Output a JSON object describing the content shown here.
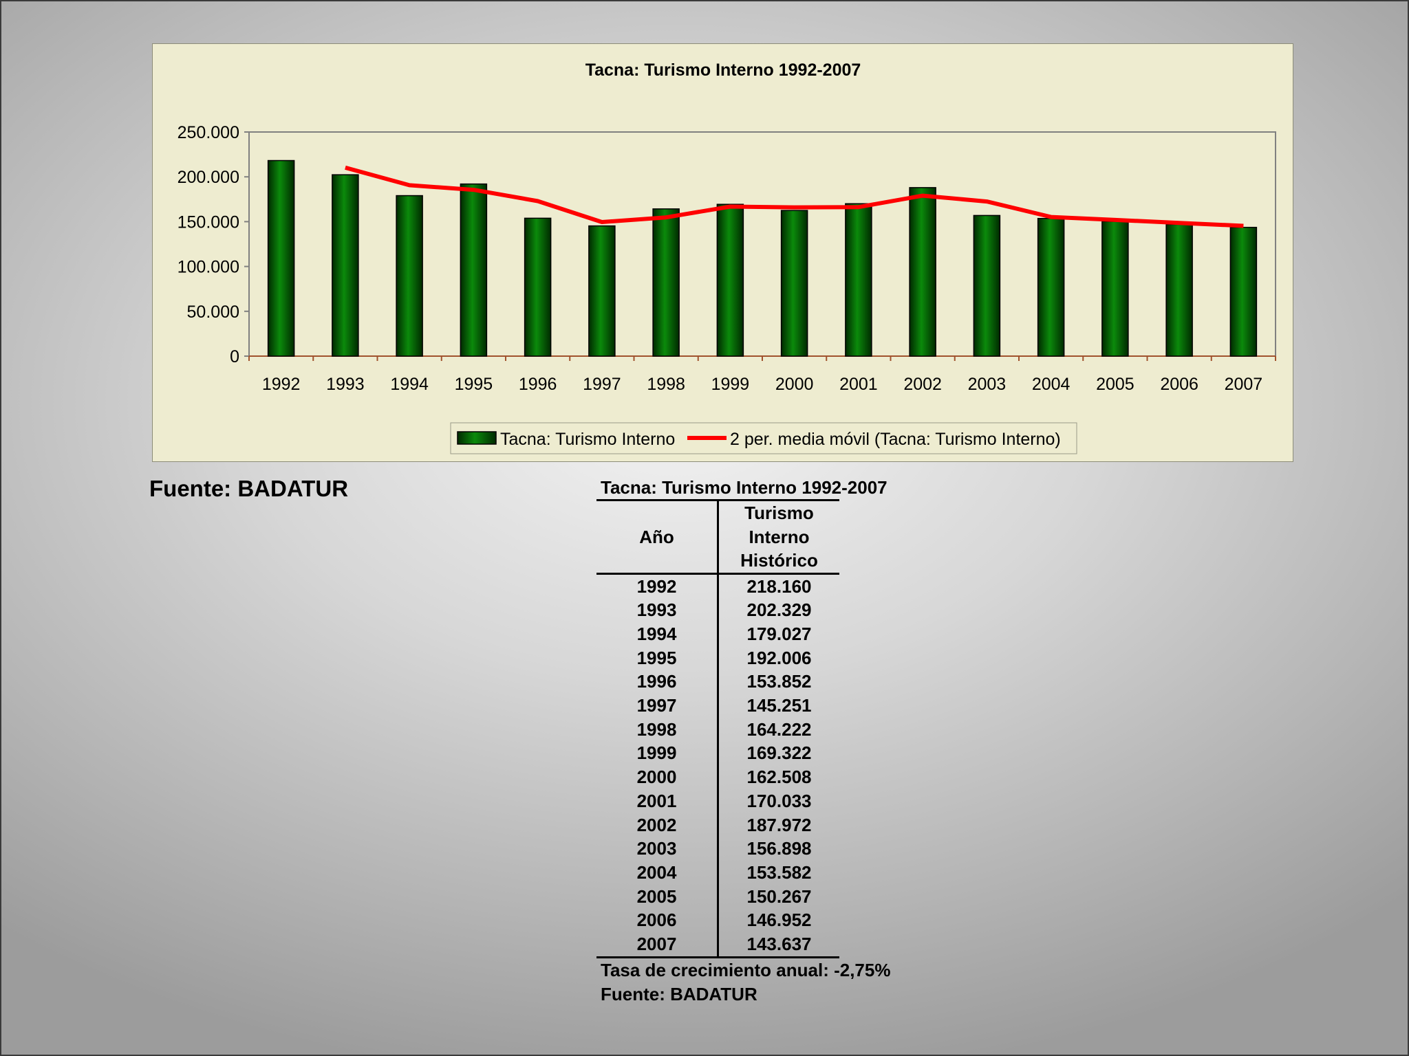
{
  "chart_data": {
    "type": "bar",
    "title": "Tacna: Turismo Interno 1992-2007",
    "categories": [
      "1992",
      "1993",
      "1994",
      "1995",
      "1996",
      "1997",
      "1998",
      "1999",
      "2000",
      "2001",
      "2002",
      "2003",
      "2004",
      "2005",
      "2006",
      "2007"
    ],
    "series": [
      {
        "name": "Tacna: Turismo Interno",
        "type": "bar",
        "color": "#0b7d0b",
        "values": [
          218160,
          202329,
          179027,
          192006,
          153852,
          145251,
          164222,
          169322,
          162508,
          170033,
          187972,
          156898,
          153582,
          150267,
          146952,
          143637
        ]
      },
      {
        "name": "2 per. media móvil (Tacna: Turismo Interno)",
        "type": "line",
        "color": "#ff0000",
        "values": [
          null,
          210244.5,
          190678,
          185516.5,
          172929,
          149551.5,
          154736.5,
          166772,
          165915,
          166270.5,
          179002.5,
          172435,
          155240,
          151924.5,
          148609.5,
          145294.5
        ]
      }
    ],
    "ylim": [
      0,
      250000
    ],
    "yticks": [
      0,
      50000,
      100000,
      150000,
      200000,
      250000
    ],
    "ytick_labels": [
      "0",
      "50.000",
      "100.000",
      "150.000",
      "200.000",
      "250.000"
    ],
    "xlabel": "",
    "ylabel": "",
    "grid": false,
    "legend": "bottom"
  },
  "source_label": "Fuente: BADATUR",
  "table": {
    "title": "Tacna: Turismo Interno 1992-2007",
    "headers": {
      "year": "Año",
      "value_lines": [
        "Turismo",
        "Interno",
        "Histórico"
      ]
    },
    "rows": [
      {
        "year": "1992",
        "value": "218.160"
      },
      {
        "year": "1993",
        "value": "202.329"
      },
      {
        "year": "1994",
        "value": "179.027"
      },
      {
        "year": "1995",
        "value": "192.006"
      },
      {
        "year": "1996",
        "value": "153.852"
      },
      {
        "year": "1997",
        "value": "145.251"
      },
      {
        "year": "1998",
        "value": "164.222"
      },
      {
        "year": "1999",
        "value": "169.322"
      },
      {
        "year": "2000",
        "value": "162.508"
      },
      {
        "year": "2001",
        "value": "170.033"
      },
      {
        "year": "2002",
        "value": "187.972"
      },
      {
        "year": "2003",
        "value": "156.898"
      },
      {
        "year": "2004",
        "value": "153.582"
      },
      {
        "year": "2005",
        "value": "150.267"
      },
      {
        "year": "2006",
        "value": "146.952"
      },
      {
        "year": "2007",
        "value": "143.637"
      }
    ],
    "growth_note": "Tasa de crecimiento anual: -2,75%",
    "source_note": "Fuente: BADATUR"
  }
}
